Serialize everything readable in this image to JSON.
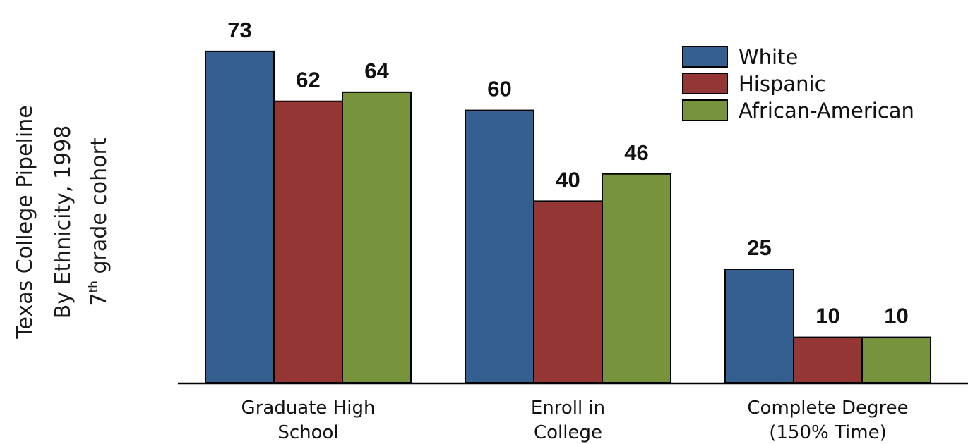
{
  "chart_data": {
    "type": "bar",
    "ylabel": {
      "line1": "Texas  College Pipeline",
      "line2": "By Ethnicity, 1998",
      "line3_base": "7",
      "line3_sup": "th",
      "line3_rest": " grade cohort"
    },
    "categories": [
      [
        "Graduate High",
        "School"
      ],
      [
        "Enroll in",
        "College"
      ],
      [
        "Complete Degree",
        "(150% Time)"
      ]
    ],
    "series": [
      {
        "name": "White",
        "color": "#355f91",
        "values": [
          73,
          60,
          25
        ]
      },
      {
        "name": "Hispanic",
        "color": "#943634",
        "values": [
          62,
          40,
          10
        ]
      },
      {
        "name": "African-American",
        "color": "#77933c",
        "values": [
          64,
          46,
          10
        ]
      }
    ],
    "ylim": [
      0,
      75
    ],
    "grid": false,
    "legend_position": "top-right"
  }
}
